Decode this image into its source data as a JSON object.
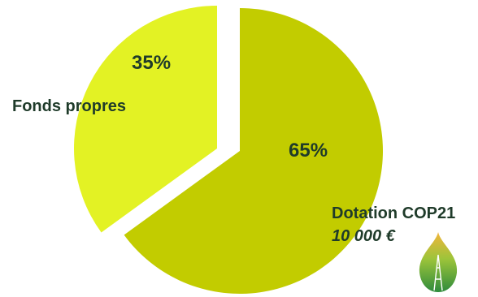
{
  "chart_data": {
    "type": "pie",
    "exploded": true,
    "slices": [
      {
        "name": "Fonds propres",
        "value": 35,
        "label": "35%",
        "color": "#e3f224"
      },
      {
        "name": "Dotation COP21",
        "value": 65,
        "label": "65%",
        "color": "#c2cc00",
        "amount": "10 000 €"
      }
    ]
  },
  "logo": {
    "icon": "leaf-tower-icon",
    "colors": [
      "#f2b53a",
      "#9cc43a",
      "#2e8b3c"
    ]
  }
}
